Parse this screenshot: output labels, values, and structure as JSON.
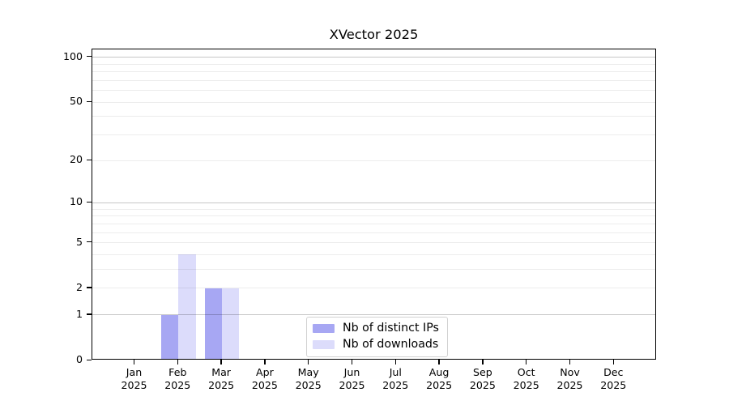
{
  "page": {
    "background": "#ffffff"
  },
  "chart_data": {
    "type": "bar",
    "title": "XVector 2025",
    "categories": [
      {
        "month": "Jan",
        "year": "2025"
      },
      {
        "month": "Feb",
        "year": "2025"
      },
      {
        "month": "Mar",
        "year": "2025"
      },
      {
        "month": "Apr",
        "year": "2025"
      },
      {
        "month": "May",
        "year": "2025"
      },
      {
        "month": "Jun",
        "year": "2025"
      },
      {
        "month": "Jul",
        "year": "2025"
      },
      {
        "month": "Aug",
        "year": "2025"
      },
      {
        "month": "Sep",
        "year": "2025"
      },
      {
        "month": "Oct",
        "year": "2025"
      },
      {
        "month": "Nov",
        "year": "2025"
      },
      {
        "month": "Dec",
        "year": "2025"
      }
    ],
    "series": [
      {
        "name": "Nb of distinct IPs",
        "color": "#a7a7f3",
        "values": [
          0,
          1,
          2,
          0,
          0,
          0,
          0,
          0,
          0,
          0,
          0,
          0
        ]
      },
      {
        "name": "Nb of downloads",
        "color": "#dcdcfb",
        "values": [
          0,
          4,
          2,
          0,
          0,
          0,
          0,
          0,
          0,
          0,
          0,
          0
        ]
      }
    ],
    "xlabel": "",
    "ylabel": "",
    "y_axis": {
      "scale": "log1p",
      "tick_values": [
        0,
        1,
        2,
        5,
        10,
        20,
        50,
        100
      ],
      "tick_labels": [
        "0",
        "1",
        "2",
        "5",
        "10",
        "20",
        "50",
        "100"
      ],
      "range": [
        0,
        113
      ],
      "major_gridlines": [
        1,
        10,
        100
      ],
      "minor_gridlines": [
        2,
        3,
        4,
        5,
        6,
        7,
        8,
        9,
        20,
        30,
        40,
        50,
        60,
        70,
        80,
        90
      ]
    },
    "grid": {
      "on": true,
      "major_color": "#c6c6c6",
      "minor_color": "#ececec"
    },
    "axis_color": "#000000",
    "legend": {
      "position": "inside-bottom-center",
      "border_color": "#d2d2d2"
    }
  }
}
